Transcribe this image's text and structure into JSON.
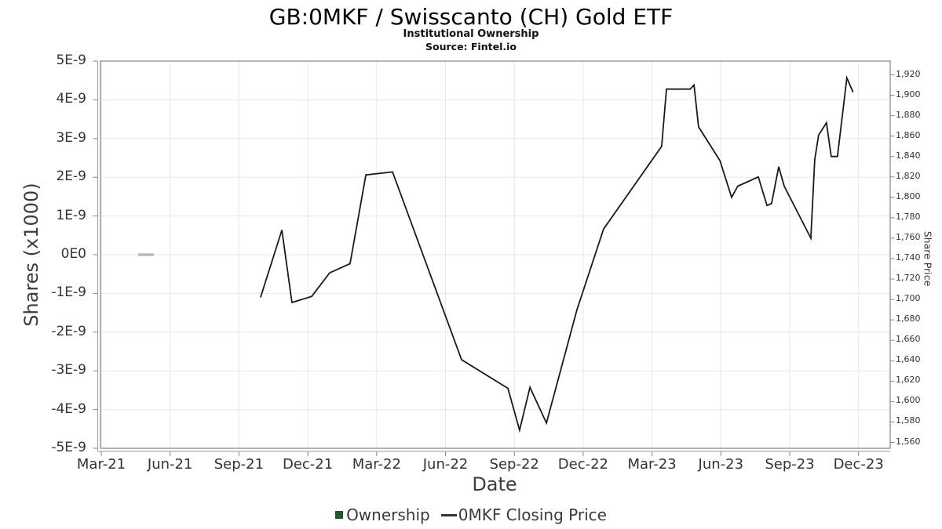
{
  "chart_data": {
    "type": "line",
    "title": "GB:0MKF / Swisscanto (CH) Gold ETF",
    "subtitle": "Institutional Ownership",
    "source": "Source: Fintel.io",
    "x_axis": {
      "label": "Date",
      "tick_labels": [
        "Mar-21",
        "Jun-21",
        "Sep-21",
        "Dec-21",
        "Mar-22",
        "Jun-22",
        "Sep-22",
        "Dec-22",
        "Mar-23",
        "Jun-23",
        "Sep-23",
        "Dec-23"
      ],
      "x_unit": "months_after_Mar-2021",
      "months_per_tick": 3
    },
    "left_axis": {
      "label": "Shares (x1000)",
      "tick_labels": [
        "5E-9",
        "4E-9",
        "3E-9",
        "2E-9",
        "1E-9",
        "0E0",
        "-1E-9",
        "-2E-9",
        "-3E-9",
        "-4E-9",
        "-5E-9"
      ],
      "min": -5e-09,
      "max": 5e-09
    },
    "right_axis": {
      "label": "Share Price",
      "min": 1560,
      "max": 1920,
      "tick_step": 20
    },
    "grid": true,
    "legend_position": "bottom-center",
    "series": [
      {
        "name": "Ownership",
        "axis": "left",
        "marker": "square",
        "legend_color": "#1e5631",
        "line_color": "#b9b9b9",
        "points": [
          [
            1.61,
            0
          ],
          [
            2.29,
            0
          ]
        ]
      },
      {
        "name": "0MKF Closing Price",
        "axis": "right",
        "marker": "line",
        "legend_color": "#333333",
        "line_color": "#1a1a1a",
        "points": [
          [
            6.94,
            1702
          ],
          [
            7.87,
            1768
          ],
          [
            8.31,
            1697
          ],
          [
            9.17,
            1703
          ],
          [
            9.95,
            1726
          ],
          [
            10.84,
            1735
          ],
          [
            11.53,
            1822
          ],
          [
            12.69,
            1825
          ],
          [
            15.7,
            1641
          ],
          [
            17.72,
            1613
          ],
          [
            18.23,
            1572
          ],
          [
            18.68,
            1614
          ],
          [
            19.4,
            1579
          ],
          [
            20.73,
            1690
          ],
          [
            21.89,
            1769
          ],
          [
            24.42,
            1850
          ],
          [
            24.63,
            1906
          ],
          [
            25.66,
            1906
          ],
          [
            25.83,
            1910
          ],
          [
            26.03,
            1869
          ],
          [
            26.96,
            1836
          ],
          [
            27.47,
            1800
          ],
          [
            27.74,
            1811
          ],
          [
            28.63,
            1820
          ],
          [
            29.01,
            1792
          ],
          [
            29.21,
            1794
          ],
          [
            29.52,
            1830
          ],
          [
            29.76,
            1811
          ],
          [
            30.92,
            1760
          ],
          [
            31.09,
            1837
          ],
          [
            31.26,
            1861
          ],
          [
            31.6,
            1873
          ],
          [
            31.81,
            1840
          ],
          [
            32.08,
            1840
          ],
          [
            32.49,
            1917
          ],
          [
            32.76,
            1903
          ]
        ]
      }
    ]
  }
}
